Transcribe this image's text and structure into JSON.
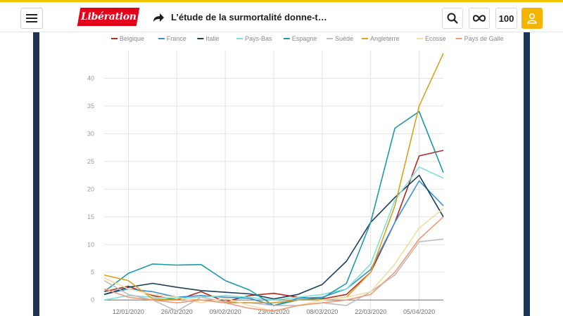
{
  "header": {
    "logo_text": "Libération",
    "article_title": "L’étude de la surmortalité donne-t…",
    "count_label": "100",
    "icons": [
      "menu-icon",
      "share-arrow-icon",
      "search-icon",
      "infinity-icon",
      "user-icon"
    ]
  },
  "colors": {
    "brand_red": "#e2001a",
    "accent_yellow": "#f5b400",
    "frame_navy": "#1c3552"
  },
  "chart_data": {
    "type": "line",
    "title": "",
    "xlabel": "",
    "ylabel": "",
    "ylim": [
      -2,
      45
    ],
    "yticks": [
      0,
      5,
      10,
      15,
      20,
      25,
      30,
      35,
      40
    ],
    "grid": true,
    "legend_position": "top",
    "x": [
      "05/01/2020",
      "12/01/2020",
      "19/01/2020",
      "26/01/2020",
      "02/02/2020",
      "09/02/2020",
      "16/02/2020",
      "23/02/2020",
      "01/03/2020",
      "08/03/2020",
      "15/03/2020",
      "22/03/2020",
      "29/03/2020",
      "05/04/2020",
      "12/04/2020"
    ],
    "xtick_labels": [
      "12/01/2020",
      "26/01/2020",
      "09/02/2020",
      "23/02/2020",
      "08/03/2020",
      "22/03/2020",
      "05/04/2020"
    ],
    "series": [
      {
        "name": "Belgique",
        "color": "#b5281f",
        "values": [
          1.5,
          2.5,
          0.8,
          0.0,
          1.5,
          -0.3,
          0.8,
          1.2,
          0.5,
          0.2,
          1.0,
          5.0,
          14.0,
          26.0,
          27.0
        ]
      },
      {
        "name": "France",
        "color": "#3a8fd0",
        "values": [
          1.0,
          2.0,
          1.5,
          0.5,
          0.8,
          0.5,
          0.3,
          -1.0,
          0.3,
          0.5,
          2.0,
          5.5,
          14.0,
          21.5,
          17.0
        ]
      },
      {
        "name": "Italie",
        "color": "#1b3d5c",
        "values": [
          1.0,
          2.3,
          3.0,
          2.3,
          1.7,
          1.4,
          1.1,
          0.2,
          1.0,
          2.8,
          7.0,
          14.0,
          18.5,
          22.5,
          15.0
        ]
      },
      {
        "name": "Pays-Bas",
        "color": "#7fe0d8",
        "values": [
          0.0,
          0.8,
          0.5,
          0.3,
          0.5,
          0.8,
          0.5,
          0.0,
          0.5,
          1.0,
          2.0,
          6.5,
          18.0,
          24.0,
          22.0
        ]
      },
      {
        "name": "Espagne",
        "color": "#1e9aa3",
        "values": [
          1.5,
          4.8,
          6.5,
          6.3,
          6.4,
          3.5,
          1.8,
          -1.0,
          0.0,
          0.3,
          3.0,
          14.0,
          31.0,
          34.0,
          23.0
        ]
      },
      {
        "name": "Suède",
        "color": "#bdbdbd",
        "values": [
          3.5,
          1.0,
          0.0,
          -2.0,
          0.5,
          -0.3,
          -0.5,
          -1.0,
          -1.0,
          -0.5,
          -1.0,
          1.5,
          4.5,
          10.5,
          11.0
        ]
      },
      {
        "name": "Angleterre",
        "color": "#d9a21e",
        "values": [
          4.5,
          3.5,
          0.2,
          0.0,
          0.0,
          -0.5,
          -0.5,
          -0.5,
          0.0,
          0.0,
          0.5,
          5.0,
          17.0,
          35.0,
          44.5
        ]
      },
      {
        "name": "Ecosse",
        "color": "#f6dca0",
        "values": [
          4.0,
          2.0,
          1.0,
          0.5,
          -0.5,
          0.3,
          -1.0,
          -2.0,
          -1.0,
          0.0,
          0.5,
          1.5,
          6.5,
          13.0,
          16.5
        ]
      },
      {
        "name": "Pays de Galle",
        "color": "#ee9a75",
        "values": [
          2.0,
          0.5,
          0.0,
          -0.5,
          0.0,
          -0.5,
          -1.5,
          -2.0,
          -1.0,
          -0.5,
          0.0,
          1.0,
          5.0,
          11.0,
          15.0
        ]
      }
    ]
  }
}
